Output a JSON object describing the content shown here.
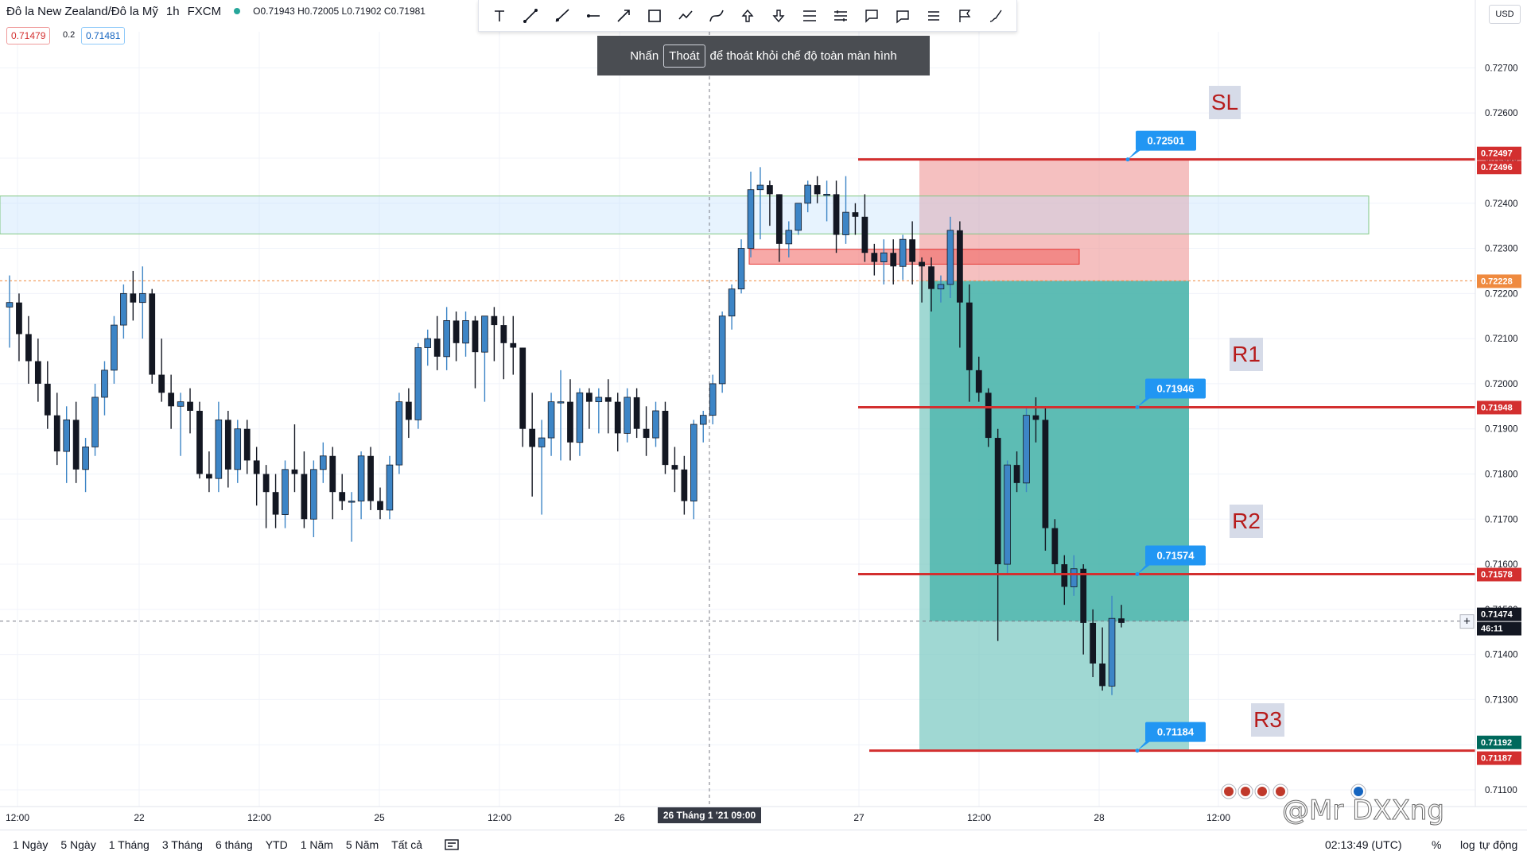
{
  "header": {
    "symbol": "Đô la New Zealand/Đô la Mỹ",
    "timeframe": "1h",
    "source": "FXCM",
    "ohlc": "O0.71943 H0.72005 L0.71902 C0.71981",
    "sell_price": "0.71479",
    "spread": "0.2",
    "buy_price": "0.71481"
  },
  "fullscreen_hint": {
    "prefix": "Nhấn",
    "key": "Thoát",
    "suffix": "để thoát khỏi chế độ toàn màn hình"
  },
  "currency_button": "USD",
  "toolbar_icons": [
    "text-icon",
    "trend-line-icon",
    "ray-icon",
    "horizontal-ray-icon",
    "arrow-line-icon",
    "rectangle-icon",
    "path-icon",
    "curve-icon",
    "arrow-up-icon",
    "arrow-down-icon",
    "price-range-icon",
    "date-range-icon",
    "callout-icon",
    "comment-icon",
    "note-icon",
    "flag-icon",
    "brush-icon"
  ],
  "price_axis": {
    "ticks": [
      "0.72700",
      "0.72600",
      "0.72500",
      "0.72400",
      "0.72300",
      "0.72200",
      "0.72100",
      "0.72000",
      "0.71900",
      "0.71800",
      "0.71700",
      "0.71600",
      "0.71500",
      "0.71400",
      "0.71300",
      "0.71200",
      "0.71100"
    ],
    "labels": [
      {
        "text": "0.72497",
        "color": "#d32f2f"
      },
      {
        "text": "0.72496",
        "color": "#d32f2f"
      },
      {
        "text": "0.72228",
        "color": "#ef8a3f"
      },
      {
        "text": "0.71948",
        "color": "#d32f2f"
      },
      {
        "text": "0.71578",
        "color": "#d32f2f"
      },
      {
        "text": "0.71474",
        "color": "#131722"
      },
      {
        "text": "46:11",
        "color": "#131722"
      },
      {
        "text": "0.71192",
        "color": "#00695c"
      },
      {
        "text": "0.71187",
        "color": "#d32f2f"
      }
    ]
  },
  "time_axis": {
    "labels": [
      "12:00",
      "22",
      "12:00",
      "25",
      "12:00",
      "26",
      "27",
      "12:00",
      "28",
      "12:00"
    ],
    "crosshair_label": "26 Tháng 1 '21   09:00"
  },
  "annotations": {
    "levels": [
      {
        "name": "SL",
        "price": 0.72497,
        "callout": "0.72501"
      },
      {
        "name": "R1",
        "price": 0.71948,
        "callout": "0.71946"
      },
      {
        "name": "R2",
        "price": 0.71578,
        "callout": "0.71574"
      },
      {
        "name": "R3",
        "price": 0.71187,
        "callout": "0.71184"
      }
    ],
    "zone_blue": [
      0.72332,
      0.72416
    ],
    "zone_red_small": [
      0.72265,
      0.72298
    ],
    "entry_price": 0.72228,
    "current_price": 0.71474
  },
  "bottom_bar": {
    "ranges": [
      "1 Ngày",
      "5 Ngày",
      "1 Tháng",
      "3 Tháng",
      "6 tháng",
      "YTD",
      "1 Năm",
      "5 Năm",
      "Tất cả"
    ],
    "clock": "02:13:49 (UTC)",
    "percent": "%",
    "log": "log",
    "auto": "tự động"
  },
  "watermark": "@Mr DXXng",
  "colors": {
    "up": "#3d85c6",
    "down": "#131722",
    "red_line": "#d32f2f",
    "green_zone": "#26a69a"
  },
  "chart_data": {
    "type": "candlestick",
    "title": "",
    "ylim": [
      0.7105,
      0.7275
    ],
    "candles": [
      [
        0.7217,
        0.7224,
        0.7208,
        0.7218
      ],
      [
        0.7218,
        0.722,
        0.7205,
        0.7211
      ],
      [
        0.7211,
        0.7215,
        0.72,
        0.7205
      ],
      [
        0.7205,
        0.721,
        0.7196,
        0.72
      ],
      [
        0.72,
        0.7205,
        0.719,
        0.7193
      ],
      [
        0.7193,
        0.7198,
        0.7182,
        0.7185
      ],
      [
        0.7185,
        0.7195,
        0.7178,
        0.7192
      ],
      [
        0.7192,
        0.7196,
        0.7178,
        0.7181
      ],
      [
        0.7181,
        0.7188,
        0.7176,
        0.7186
      ],
      [
        0.7186,
        0.72,
        0.7184,
        0.7197
      ],
      [
        0.7197,
        0.7205,
        0.7193,
        0.7203
      ],
      [
        0.7203,
        0.7215,
        0.72,
        0.7213
      ],
      [
        0.7213,
        0.7222,
        0.721,
        0.722
      ],
      [
        0.722,
        0.7225,
        0.7214,
        0.7218
      ],
      [
        0.7218,
        0.7226,
        0.721,
        0.722
      ],
      [
        0.722,
        0.7221,
        0.72,
        0.7202
      ],
      [
        0.7202,
        0.721,
        0.7196,
        0.7198
      ],
      [
        0.7198,
        0.7202,
        0.719,
        0.7195
      ],
      [
        0.7195,
        0.7198,
        0.7184,
        0.7196
      ],
      [
        0.7196,
        0.7199,
        0.7189,
        0.7194
      ],
      [
        0.7194,
        0.7196,
        0.7179,
        0.718
      ],
      [
        0.718,
        0.7185,
        0.7176,
        0.7179
      ],
      [
        0.7179,
        0.7196,
        0.7176,
        0.7192
      ],
      [
        0.7192,
        0.7194,
        0.7177,
        0.7181
      ],
      [
        0.7181,
        0.7192,
        0.7178,
        0.719
      ],
      [
        0.719,
        0.7192,
        0.718,
        0.7183
      ],
      [
        0.7183,
        0.7186,
        0.7173,
        0.718
      ],
      [
        0.718,
        0.7182,
        0.7168,
        0.7176
      ],
      [
        0.7176,
        0.718,
        0.7168,
        0.7171
      ],
      [
        0.7171,
        0.7183,
        0.7168,
        0.7181
      ],
      [
        0.7181,
        0.7191,
        0.7176,
        0.718
      ],
      [
        0.718,
        0.7185,
        0.7168,
        0.717
      ],
      [
        0.717,
        0.7183,
        0.7166,
        0.7181
      ],
      [
        0.7181,
        0.7187,
        0.7178,
        0.7184
      ],
      [
        0.7184,
        0.7186,
        0.717,
        0.7176
      ],
      [
        0.7176,
        0.718,
        0.7172,
        0.7174
      ],
      [
        0.7174,
        0.7176,
        0.7165,
        0.7174
      ],
      [
        0.7174,
        0.7185,
        0.717,
        0.7184
      ],
      [
        0.7184,
        0.7186,
        0.7172,
        0.7174
      ],
      [
        0.7174,
        0.7177,
        0.717,
        0.7172
      ],
      [
        0.7172,
        0.7184,
        0.717,
        0.7182
      ],
      [
        0.7182,
        0.7198,
        0.718,
        0.7196
      ],
      [
        0.7196,
        0.7199,
        0.7188,
        0.7192
      ],
      [
        0.7192,
        0.7209,
        0.719,
        0.7208
      ],
      [
        0.7208,
        0.7212,
        0.7204,
        0.721
      ],
      [
        0.721,
        0.7215,
        0.7203,
        0.7206
      ],
      [
        0.7206,
        0.7217,
        0.7203,
        0.7214
      ],
      [
        0.7214,
        0.7216,
        0.7205,
        0.7209
      ],
      [
        0.7209,
        0.7216,
        0.7206,
        0.7214
      ],
      [
        0.7214,
        0.7215,
        0.7199,
        0.7207
      ],
      [
        0.7207,
        0.7215,
        0.7196,
        0.7215
      ],
      [
        0.7215,
        0.7217,
        0.7205,
        0.7213
      ],
      [
        0.7213,
        0.7215,
        0.7201,
        0.7209
      ],
      [
        0.7209,
        0.7215,
        0.7202,
        0.7208
      ],
      [
        0.7208,
        0.7208,
        0.7186,
        0.719
      ],
      [
        0.719,
        0.7198,
        0.7175,
        0.7186
      ],
      [
        0.7186,
        0.7192,
        0.7171,
        0.7188
      ],
      [
        0.7188,
        0.7198,
        0.7184,
        0.7196
      ],
      [
        0.7196,
        0.7203,
        0.7183,
        0.7196
      ],
      [
        0.7196,
        0.7201,
        0.7183,
        0.7187
      ],
      [
        0.7187,
        0.7199,
        0.7184,
        0.7198
      ],
      [
        0.7198,
        0.7199,
        0.719,
        0.7196
      ],
      [
        0.7196,
        0.7199,
        0.7189,
        0.7197
      ],
      [
        0.7197,
        0.7201,
        0.7189,
        0.7196
      ],
      [
        0.7196,
        0.7198,
        0.7185,
        0.7189
      ],
      [
        0.7189,
        0.7199,
        0.7187,
        0.7197
      ],
      [
        0.7197,
        0.7199,
        0.7188,
        0.719
      ],
      [
        0.719,
        0.7195,
        0.7184,
        0.7188
      ],
      [
        0.7188,
        0.7196,
        0.7186,
        0.7194
      ],
      [
        0.7194,
        0.7196,
        0.718,
        0.7182
      ],
      [
        0.7182,
        0.7186,
        0.7176,
        0.7181
      ],
      [
        0.7181,
        0.7184,
        0.7171,
        0.7174
      ],
      [
        0.7174,
        0.7192,
        0.717,
        0.7191
      ],
      [
        0.7191,
        0.7194,
        0.7187,
        0.7193
      ],
      [
        0.7193,
        0.7202,
        0.7191,
        0.72
      ],
      [
        0.72,
        0.7216,
        0.7198,
        0.7215
      ],
      [
        0.7215,
        0.7222,
        0.7212,
        0.7221
      ],
      [
        0.7221,
        0.7232,
        0.722,
        0.723
      ],
      [
        0.723,
        0.7247,
        0.7228,
        0.7243
      ],
      [
        0.7243,
        0.7248,
        0.7232,
        0.7244
      ],
      [
        0.7244,
        0.7245,
        0.7235,
        0.7242
      ],
      [
        0.7242,
        0.7242,
        0.7227,
        0.7231
      ],
      [
        0.7231,
        0.7236,
        0.7228,
        0.7234
      ],
      [
        0.7234,
        0.724,
        0.7233,
        0.724
      ],
      [
        0.724,
        0.7245,
        0.7238,
        0.7244
      ],
      [
        0.7244,
        0.7246,
        0.724,
        0.7242
      ],
      [
        0.7242,
        0.7245,
        0.7236,
        0.7242
      ],
      [
        0.7242,
        0.7245,
        0.7229,
        0.7233
      ],
      [
        0.7233,
        0.7246,
        0.7231,
        0.7238
      ],
      [
        0.7238,
        0.724,
        0.7233,
        0.7237
      ],
      [
        0.7237,
        0.7242,
        0.7227,
        0.7229
      ],
      [
        0.7229,
        0.7231,
        0.7224,
        0.7227
      ],
      [
        0.7227,
        0.7232,
        0.7222,
        0.7229
      ],
      [
        0.7229,
        0.7232,
        0.7222,
        0.7226
      ],
      [
        0.7226,
        0.7233,
        0.7223,
        0.7232
      ],
      [
        0.7232,
        0.7236,
        0.7222,
        0.7227
      ],
      [
        0.7227,
        0.7228,
        0.7218,
        0.7226
      ],
      [
        0.7226,
        0.7228,
        0.7216,
        0.7221
      ],
      [
        0.7221,
        0.7224,
        0.7218,
        0.7222
      ],
      [
        0.7222,
        0.7237,
        0.7219,
        0.7234
      ],
      [
        0.7234,
        0.7236,
        0.7208,
        0.7218
      ],
      [
        0.7218,
        0.7222,
        0.7196,
        0.7203
      ],
      [
        0.7203,
        0.7206,
        0.7196,
        0.7198
      ],
      [
        0.7198,
        0.7199,
        0.7186,
        0.7188
      ],
      [
        0.7188,
        0.719,
        0.7143,
        0.716
      ],
      [
        0.716,
        0.7183,
        0.7158,
        0.7182
      ],
      [
        0.7182,
        0.7185,
        0.7176,
        0.7178
      ],
      [
        0.7178,
        0.7195,
        0.7176,
        0.7193
      ],
      [
        0.7193,
        0.7197,
        0.7187,
        0.7192
      ],
      [
        0.7192,
        0.7195,
        0.7163,
        0.7168
      ],
      [
        0.7168,
        0.717,
        0.7158,
        0.716
      ],
      [
        0.716,
        0.7162,
        0.7151,
        0.7155
      ],
      [
        0.7155,
        0.7162,
        0.7153,
        0.7159
      ],
      [
        0.7159,
        0.716,
        0.714,
        0.7147
      ],
      [
        0.7147,
        0.715,
        0.7135,
        0.7138
      ],
      [
        0.7138,
        0.7146,
        0.7132,
        0.7133
      ],
      [
        0.7133,
        0.7153,
        0.7131,
        0.7148
      ],
      [
        0.7148,
        0.7151,
        0.7146,
        0.7147
      ]
    ]
  }
}
